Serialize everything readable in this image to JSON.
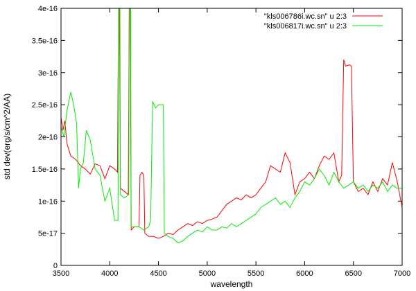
{
  "chart_data": {
    "type": "line",
    "title": "",
    "xlabel": "wavelength",
    "ylabel": "std dev(erg/s/cm^2/AA)",
    "xlim": [
      3500,
      7000
    ],
    "ylim": [
      0,
      4e-16
    ],
    "x_ticks": [
      3500,
      4000,
      4500,
      5000,
      5500,
      6000,
      6500,
      7000
    ],
    "x_tick_labels": [
      "3500",
      "4000",
      "4500",
      "5000",
      "5500",
      "6000",
      "6500",
      "7000"
    ],
    "y_ticks": [
      0,
      5e-17,
      1e-16,
      1.5e-16,
      2e-16,
      2.5e-16,
      3e-16,
      3.5e-16,
      4e-16
    ],
    "y_tick_labels": [
      "0",
      "5e-17",
      "1e-16",
      "1.5e-16",
      "2e-16",
      "2.5e-16",
      "3e-16",
      "3.5e-16",
      "4e-16"
    ],
    "grid": false,
    "legend_position": "top-right",
    "series": [
      {
        "name": "\"kls006786i.wc.sn\" u 2:3",
        "color": "#ff0000",
        "points": [
          [
            3500,
            2.3e-16
          ],
          [
            3520,
            2.1e-16
          ],
          [
            3540,
            2.25e-16
          ],
          [
            3560,
            1.9e-16
          ],
          [
            3600,
            1.7e-16
          ],
          [
            3650,
            1.65e-16
          ],
          [
            3700,
            1.55e-16
          ],
          [
            3750,
            1.5e-16
          ],
          [
            3800,
            1.42e-16
          ],
          [
            3850,
            1.58e-16
          ],
          [
            3900,
            1.55e-16
          ],
          [
            3950,
            1.35e-16
          ],
          [
            4000,
            1.55e-16
          ],
          [
            4050,
            1.5e-16
          ],
          [
            4080,
            1.45e-16
          ],
          [
            4090,
            4e-16
          ],
          [
            4100,
            4e-16
          ],
          [
            4110,
            1.2e-16
          ],
          [
            4150,
            1.15e-16
          ],
          [
            4190,
            1.1e-16
          ],
          [
            4200,
            4e-16
          ],
          [
            4210,
            4e-16
          ],
          [
            4220,
            5.5e-17
          ],
          [
            4250,
            6e-17
          ],
          [
            4300,
            6e-17
          ],
          [
            4310,
            1.4e-16
          ],
          [
            4330,
            1.45e-16
          ],
          [
            4350,
            1.4e-16
          ],
          [
            4360,
            5e-17
          ],
          [
            4400,
            4.5e-17
          ],
          [
            4450,
            4.5e-17
          ],
          [
            4500,
            4.2e-17
          ],
          [
            4550,
            4.5e-17
          ],
          [
            4600,
            5e-17
          ],
          [
            4650,
            4.8e-17
          ],
          [
            4700,
            5.5e-17
          ],
          [
            4750,
            6e-17
          ],
          [
            4800,
            6.5e-17
          ],
          [
            4850,
            6.2e-17
          ],
          [
            4900,
            6.8e-17
          ],
          [
            4950,
            6.5e-17
          ],
          [
            5000,
            7e-17
          ],
          [
            5050,
            7.2e-17
          ],
          [
            5100,
            7.5e-17
          ],
          [
            5150,
            8.5e-17
          ],
          [
            5200,
            9.5e-17
          ],
          [
            5250,
            1e-16
          ],
          [
            5300,
            1.05e-16
          ],
          [
            5350,
            1.02e-16
          ],
          [
            5400,
            1.1e-16
          ],
          [
            5450,
            1.05e-16
          ],
          [
            5500,
            1.1e-16
          ],
          [
            5550,
            1.2e-16
          ],
          [
            5600,
            1.3e-16
          ],
          [
            5650,
            1.55e-16
          ],
          [
            5700,
            1.5e-16
          ],
          [
            5750,
            1.45e-16
          ],
          [
            5800,
            1.75e-16
          ],
          [
            5850,
            1.6e-16
          ],
          [
            5900,
            1.1e-16
          ],
          [
            5950,
            1.3e-16
          ],
          [
            6000,
            1.35e-16
          ],
          [
            6050,
            1.45e-16
          ],
          [
            6100,
            1.35e-16
          ],
          [
            6150,
            1.55e-16
          ],
          [
            6200,
            1.7e-16
          ],
          [
            6250,
            1.65e-16
          ],
          [
            6300,
            1.75e-16
          ],
          [
            6350,
            1.3e-16
          ],
          [
            6380,
            1.4e-16
          ],
          [
            6400,
            3.2e-16
          ],
          [
            6420,
            3.1e-16
          ],
          [
            6460,
            3.12e-16
          ],
          [
            6480,
            3.1e-16
          ],
          [
            6500,
            1.3e-16
          ],
          [
            6550,
            1.15e-16
          ],
          [
            6600,
            1.2e-16
          ],
          [
            6650,
            1.1e-16
          ],
          [
            6700,
            1.3e-16
          ],
          [
            6750,
            1.15e-16
          ],
          [
            6800,
            1.35e-16
          ],
          [
            6850,
            1.25e-16
          ],
          [
            6900,
            1.6e-16
          ],
          [
            6950,
            1.3e-16
          ],
          [
            7000,
            9e-17
          ]
        ]
      },
      {
        "name": "\"kls006817i.wc.sn\" u 2:3",
        "color": "#00ee00",
        "points": [
          [
            3500,
            2.15e-16
          ],
          [
            3530,
            2e-16
          ],
          [
            3560,
            2.4e-16
          ],
          [
            3600,
            2.7e-16
          ],
          [
            3630,
            2.5e-16
          ],
          [
            3660,
            2.2e-16
          ],
          [
            3680,
            1.2e-16
          ],
          [
            3700,
            1.5e-16
          ],
          [
            3730,
            1.6e-16
          ],
          [
            3760,
            2.1e-16
          ],
          [
            3800,
            1.95e-16
          ],
          [
            3850,
            1.5e-16
          ],
          [
            3900,
            1.4e-16
          ],
          [
            3950,
            1e-16
          ],
          [
            4000,
            1.2e-16
          ],
          [
            4050,
            7e-17
          ],
          [
            4085,
            7e-17
          ],
          [
            4090,
            4e-16
          ],
          [
            4105,
            4e-16
          ],
          [
            4110,
            1.1e-16
          ],
          [
            4150,
            1.05e-16
          ],
          [
            4195,
            1.1e-16
          ],
          [
            4200,
            4e-16
          ],
          [
            4215,
            4e-16
          ],
          [
            4220,
            6e-17
          ],
          [
            4260,
            6e-17
          ],
          [
            4300,
            6e-17
          ],
          [
            4350,
            5.5e-17
          ],
          [
            4400,
            6e-17
          ],
          [
            4420,
            7e-17
          ],
          [
            4440,
            2.55e-16
          ],
          [
            4470,
            2.45e-16
          ],
          [
            4500,
            2.5e-16
          ],
          [
            4550,
            2.5e-16
          ],
          [
            4560,
            5e-17
          ],
          [
            4600,
            4.5e-17
          ],
          [
            4650,
            4.2e-17
          ],
          [
            4700,
            3.5e-17
          ],
          [
            4750,
            3.8e-17
          ],
          [
            4800,
            4.5e-17
          ],
          [
            4850,
            5e-17
          ],
          [
            4900,
            5.5e-17
          ],
          [
            4950,
            5.2e-17
          ],
          [
            5000,
            6e-17
          ],
          [
            5050,
            5.5e-17
          ],
          [
            5100,
            5.5e-17
          ],
          [
            5150,
            6e-17
          ],
          [
            5200,
            5.8e-17
          ],
          [
            5250,
            6.5e-17
          ],
          [
            5300,
            6e-17
          ],
          [
            5350,
            6.5e-17
          ],
          [
            5400,
            7e-17
          ],
          [
            5450,
            7.5e-17
          ],
          [
            5500,
            8e-17
          ],
          [
            5550,
            9e-17
          ],
          [
            5600,
            9.5e-17
          ],
          [
            5650,
            1e-16
          ],
          [
            5700,
            1.05e-16
          ],
          [
            5750,
            9.5e-17
          ],
          [
            5800,
            1e-16
          ],
          [
            5850,
            9e-17
          ],
          [
            5900,
            1.05e-16
          ],
          [
            5950,
            1.15e-16
          ],
          [
            6000,
            1.3e-16
          ],
          [
            6050,
            1.25e-16
          ],
          [
            6100,
            1.35e-16
          ],
          [
            6150,
            1.5e-16
          ],
          [
            6200,
            1.4e-16
          ],
          [
            6250,
            1.25e-16
          ],
          [
            6300,
            1.45e-16
          ],
          [
            6350,
            1.3e-16
          ],
          [
            6400,
            1.2e-16
          ],
          [
            6450,
            1.25e-16
          ],
          [
            6500,
            1.3e-16
          ],
          [
            6550,
            1.2e-16
          ],
          [
            6600,
            1.25e-16
          ],
          [
            6650,
            1.15e-16
          ],
          [
            6700,
            1.25e-16
          ],
          [
            6750,
            1.2e-16
          ],
          [
            6800,
            1.3e-16
          ],
          [
            6850,
            1.15e-16
          ],
          [
            6900,
            1.25e-16
          ],
          [
            6950,
            1.2e-16
          ],
          [
            7000,
            1.2e-16
          ]
        ]
      }
    ]
  }
}
